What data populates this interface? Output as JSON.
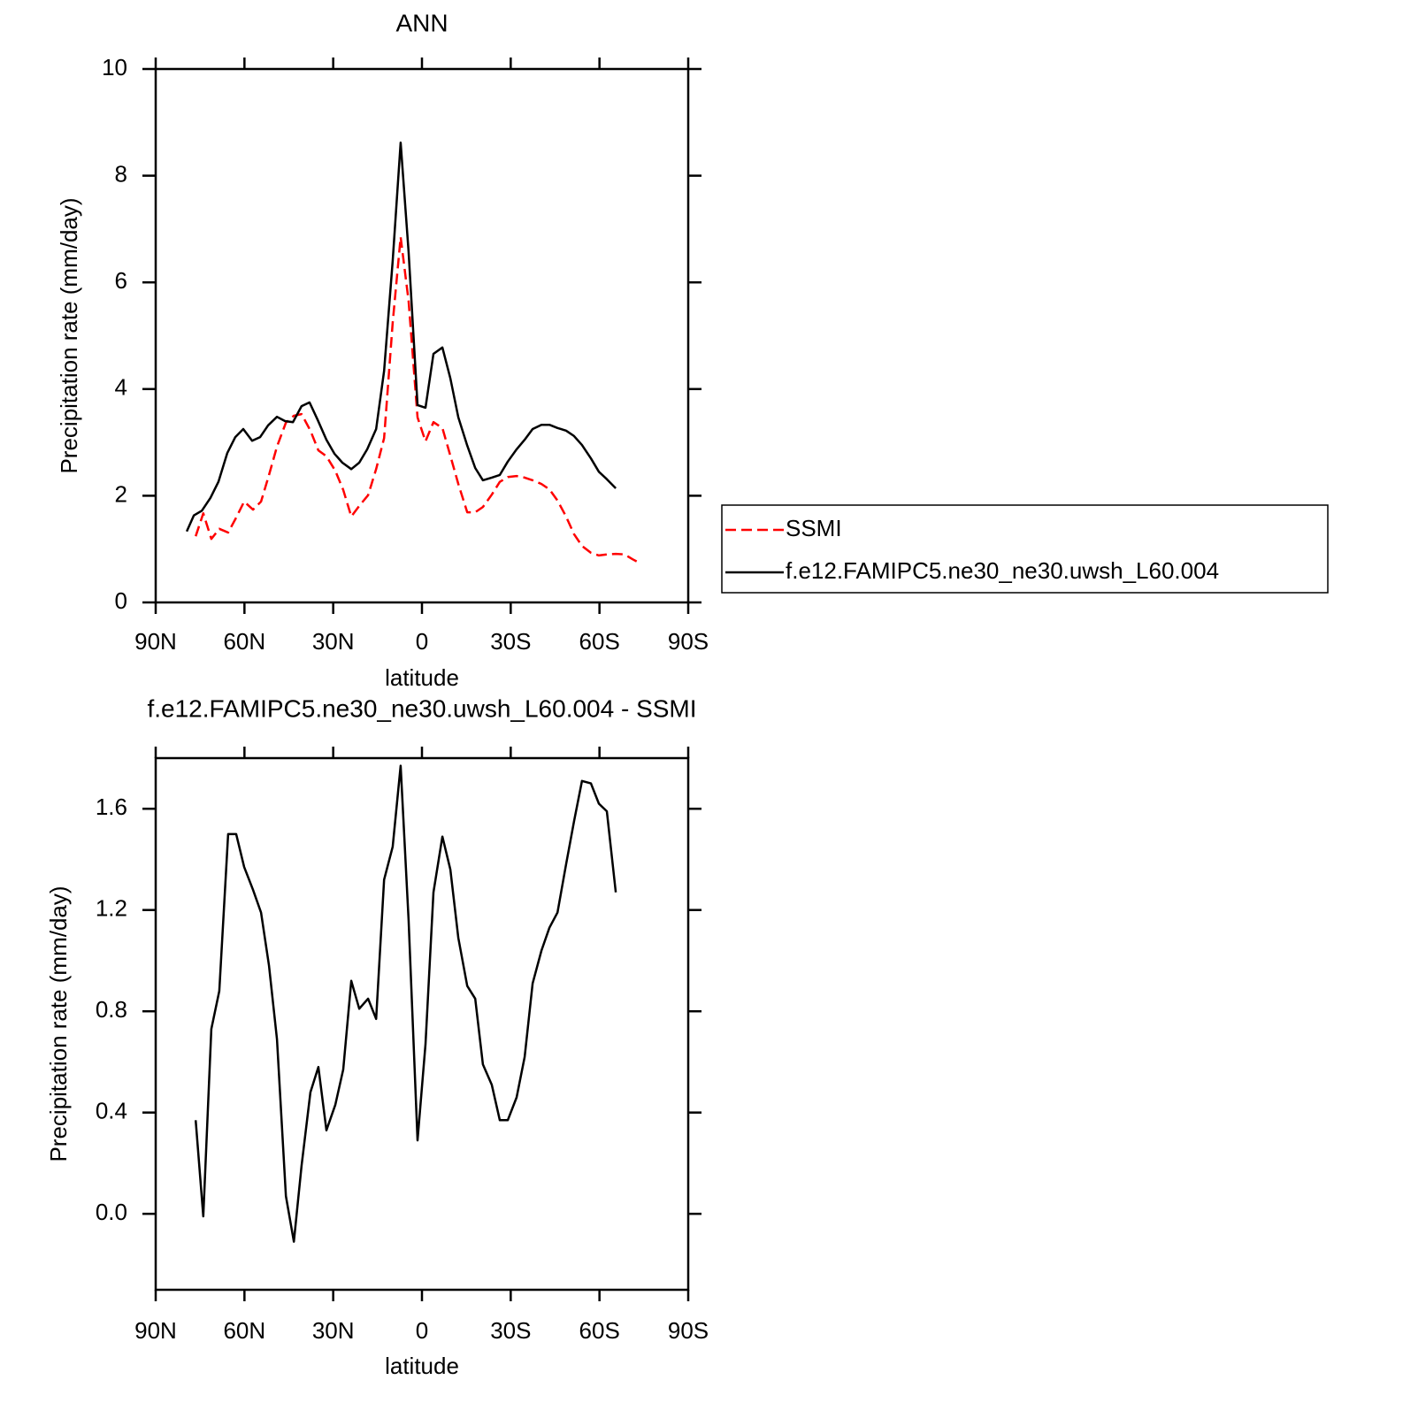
{
  "chart_data": [
    {
      "type": "line",
      "title": "ANN",
      "xlabel": "latitude",
      "ylabel": "Precipitation rate (mm/day)",
      "xlim": [
        90,
        -90
      ],
      "xticks": [
        {
          "value": 90,
          "label": "90N"
        },
        {
          "value": 60,
          "label": "60N"
        },
        {
          "value": 30,
          "label": "30N"
        },
        0,
        {
          "value": -30,
          "label": "30S"
        },
        {
          "value": -60,
          "label": "60S"
        },
        {
          "value": -90,
          "label": "90S"
        }
      ],
      "ylim": [
        0,
        10
      ],
      "yticks": [
        0,
        2,
        4,
        6,
        8,
        10
      ],
      "legend": "right",
      "series": [
        {
          "name": "SSMI",
          "color": "#ff0000",
          "dashed": true,
          "x": [
            76.5,
            73.9,
            71.2,
            68.5,
            65.5,
            62.8,
            60.1,
            57.1,
            54.4,
            51.7,
            49.0,
            46.0,
            43.3,
            40.7,
            37.7,
            35.0,
            32.3,
            29.3,
            26.6,
            23.9,
            21.2,
            18.2,
            15.5,
            12.8,
            9.9,
            7.2,
            4.5,
            1.5,
            -1.2,
            -3.9,
            -6.9,
            -9.6,
            -12.3,
            -15.3,
            -18.0,
            -20.6,
            -23.6,
            -26.3,
            -29.0,
            -32.0,
            -34.7,
            -37.4,
            -40.4,
            -43.1,
            -45.8,
            -48.7,
            -51.4,
            -54.1,
            -57.1,
            -59.8,
            -62.5,
            -65.5,
            -68.5,
            -71.2,
            -73.9
          ],
          "values": [
            1.24,
            1.67,
            1.19,
            1.38,
            1.31,
            1.59,
            1.89,
            1.74,
            1.89,
            2.39,
            2.92,
            3.37,
            3.5,
            3.53,
            3.22,
            2.85,
            2.74,
            2.47,
            2.11,
            1.61,
            1.81,
            2.01,
            2.5,
            3.08,
            5.24,
            6.85,
            5.65,
            3.47,
            3.02,
            3.38,
            3.27,
            2.75,
            2.22,
            1.69,
            1.69,
            1.79,
            2.02,
            2.26,
            2.35,
            2.37,
            2.34,
            2.29,
            2.22,
            2.12,
            1.91,
            1.61,
            1.28,
            1.06,
            0.93,
            0.88,
            0.9,
            0.91,
            0.9,
            0.81,
            0.73
          ]
        },
        {
          "name": "f.e12.FAMIPC5.ne30_ne30.uwsh_L60.004",
          "color": "#000000",
          "dashed": false,
          "x": [
            79.5,
            77.1,
            74.4,
            71.5,
            68.8,
            65.8,
            63.1,
            60.4,
            57.4,
            54.7,
            52.0,
            49.0,
            46.3,
            43.6,
            40.7,
            38.0,
            35.3,
            32.3,
            29.6,
            26.9,
            23.9,
            21.2,
            18.5,
            15.5,
            12.8,
            9.9,
            7.2,
            4.5,
            1.5,
            -1.2,
            -3.9,
            -6.9,
            -9.6,
            -12.3,
            -15.3,
            -18.0,
            -20.6,
            -23.6,
            -26.3,
            -29.0,
            -32.0,
            -34.7,
            -37.4,
            -40.4,
            -43.1,
            -45.8,
            -48.7,
            -51.4,
            -54.1,
            -57.1,
            -59.8,
            -62.5,
            -65.5
          ],
          "values": [
            1.33,
            1.63,
            1.72,
            1.96,
            2.26,
            2.8,
            3.1,
            3.25,
            3.03,
            3.1,
            3.32,
            3.48,
            3.4,
            3.38,
            3.68,
            3.75,
            3.43,
            3.05,
            2.79,
            2.62,
            2.5,
            2.62,
            2.87,
            3.25,
            4.34,
            6.4,
            8.62,
            6.57,
            3.7,
            3.65,
            4.66,
            4.78,
            4.2,
            3.47,
            2.94,
            2.52,
            2.29,
            2.34,
            2.39,
            2.64,
            2.87,
            3.05,
            3.25,
            3.33,
            3.33,
            3.27,
            3.22,
            3.12,
            2.95,
            2.7,
            2.45,
            2.31,
            2.14
          ]
        }
      ]
    },
    {
      "type": "line",
      "title": "f.e12.FAMIPC5.ne30_ne30.uwsh_L60.004 - SSMI",
      "xlabel": "latitude",
      "ylabel": "Precipitation rate (mm/day)",
      "xlim": [
        90,
        -90
      ],
      "xticks": [
        {
          "value": 90,
          "label": "90N"
        },
        {
          "value": 60,
          "label": "60N"
        },
        {
          "value": 30,
          "label": "30N"
        },
        0,
        {
          "value": -30,
          "label": "30S"
        },
        {
          "value": -60,
          "label": "60S"
        },
        {
          "value": -90,
          "label": "90S"
        }
      ],
      "ylim": [
        -0.3,
        1.8
      ],
      "yticks": [
        {
          "value": 0,
          "label": "0.0"
        },
        0.4,
        0.8,
        1.2,
        1.6
      ],
      "series": [
        {
          "color": "#000000",
          "dashed": false,
          "x": [
            76.5,
            73.9,
            71.2,
            68.5,
            65.5,
            62.8,
            60.1,
            57.1,
            54.4,
            51.7,
            49.0,
            46.0,
            43.3,
            40.7,
            37.7,
            35.0,
            32.3,
            29.3,
            26.6,
            23.9,
            21.2,
            18.2,
            15.5,
            12.8,
            9.9,
            7.2,
            4.5,
            1.5,
            -1.2,
            -3.9,
            -6.9,
            -9.6,
            -12.3,
            -15.3,
            -18.0,
            -20.6,
            -23.6,
            -26.3,
            -29.0,
            -32.0,
            -34.7,
            -37.4,
            -40.4,
            -43.1,
            -45.8,
            -48.7,
            -51.4,
            -54.1,
            -57.1,
            -59.8,
            -62.5,
            -65.5
          ],
          "values": [
            0.37,
            -0.01,
            0.73,
            0.88,
            1.5,
            1.5,
            1.37,
            1.28,
            1.19,
            0.98,
            0.69,
            0.07,
            -0.11,
            0.19,
            0.48,
            0.58,
            0.33,
            0.43,
            0.57,
            0.92,
            0.81,
            0.85,
            0.77,
            1.32,
            1.45,
            1.77,
            1.16,
            0.29,
            0.67,
            1.27,
            1.49,
            1.36,
            1.09,
            0.9,
            0.85,
            0.59,
            0.51,
            0.37,
            0.37,
            0.46,
            0.62,
            0.91,
            1.04,
            1.13,
            1.19,
            1.38,
            1.55,
            1.71,
            1.7,
            1.62,
            1.59,
            1.27
          ]
        }
      ]
    }
  ]
}
